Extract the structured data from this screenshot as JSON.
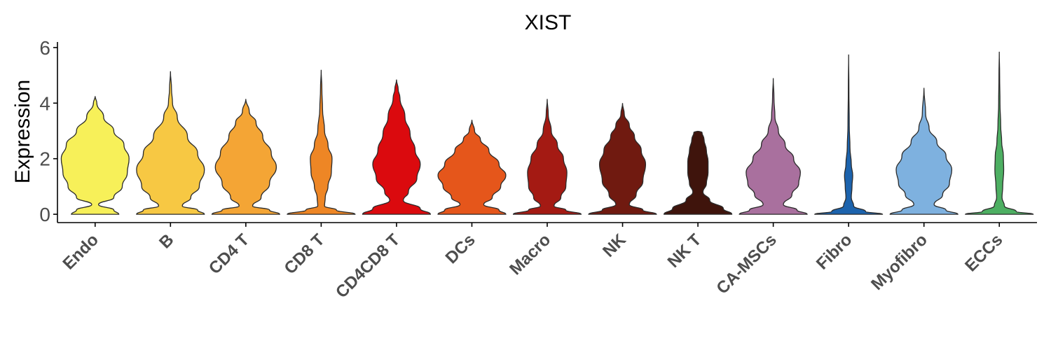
{
  "chart_data": {
    "type": "violin",
    "title": "XIST",
    "xlabel": "",
    "ylabel": "Expression",
    "ylim": [
      -0.3,
      6.2
    ],
    "yticks": [
      "0",
      "2",
      "4",
      "6"
    ],
    "grid": false,
    "legend": "none",
    "categories": [
      {
        "name": "Endo",
        "color": "#f7f059",
        "max": 4.25,
        "density": [
          [
            0,
            0.7
          ],
          [
            0.15,
            0.55
          ],
          [
            0.35,
            0.1
          ],
          [
            0.6,
            0.55
          ],
          [
            1.0,
            0.8
          ],
          [
            1.5,
            0.95
          ],
          [
            2.0,
            1.0
          ],
          [
            2.5,
            0.85
          ],
          [
            3.0,
            0.55
          ],
          [
            3.5,
            0.25
          ],
          [
            4.0,
            0.05
          ],
          [
            4.25,
            0
          ]
        ]
      },
      {
        "name": "B",
        "color": "#f7c843",
        "max": 5.15,
        "density": [
          [
            0,
            1.0
          ],
          [
            0.15,
            0.8
          ],
          [
            0.3,
            0.35
          ],
          [
            0.6,
            0.6
          ],
          [
            1.0,
            0.85
          ],
          [
            1.6,
            1.0
          ],
          [
            2.2,
            0.8
          ],
          [
            2.8,
            0.5
          ],
          [
            3.5,
            0.2
          ],
          [
            4.0,
            0.06
          ],
          [
            4.5,
            0.03
          ],
          [
            5.15,
            0
          ]
        ]
      },
      {
        "name": "CD4 T",
        "color": "#f4a535",
        "max": 4.15,
        "density": [
          [
            0,
            1.0
          ],
          [
            0.15,
            0.7
          ],
          [
            0.3,
            0.2
          ],
          [
            0.6,
            0.45
          ],
          [
            1.1,
            0.7
          ],
          [
            1.7,
            0.9
          ],
          [
            2.2,
            0.75
          ],
          [
            2.8,
            0.5
          ],
          [
            3.3,
            0.3
          ],
          [
            3.7,
            0.1
          ],
          [
            4.15,
            0
          ]
        ]
      },
      {
        "name": "CD8 T",
        "color": "#ee8625",
        "max": 5.2,
        "density": [
          [
            0,
            1.0
          ],
          [
            0.15,
            0.45
          ],
          [
            0.3,
            0.1
          ],
          [
            0.6,
            0.12
          ],
          [
            1.0,
            0.2
          ],
          [
            1.5,
            0.3
          ],
          [
            2.0,
            0.32
          ],
          [
            2.5,
            0.2
          ],
          [
            3.0,
            0.1
          ],
          [
            3.8,
            0.04
          ],
          [
            4.5,
            0.02
          ],
          [
            5.2,
            0
          ]
        ]
      },
      {
        "name": "CD4CD8 T",
        "color": "#db0a0e",
        "max": 4.85,
        "density": [
          [
            0,
            1.0
          ],
          [
            0.2,
            0.7
          ],
          [
            0.5,
            0.2
          ],
          [
            0.8,
            0.35
          ],
          [
            1.3,
            0.6
          ],
          [
            1.8,
            0.7
          ],
          [
            2.3,
            0.55
          ],
          [
            2.9,
            0.4
          ],
          [
            3.5,
            0.25
          ],
          [
            4.2,
            0.1
          ],
          [
            4.5,
            0.05
          ],
          [
            4.85,
            0
          ]
        ]
      },
      {
        "name": "DCs",
        "color": "#e5561b",
        "max": 3.4,
        "density": [
          [
            0,
            1.0
          ],
          [
            0.15,
            0.8
          ],
          [
            0.35,
            0.35
          ],
          [
            0.6,
            0.6
          ],
          [
            1.0,
            0.85
          ],
          [
            1.4,
            1.0
          ],
          [
            1.8,
            0.8
          ],
          [
            2.3,
            0.5
          ],
          [
            2.7,
            0.25
          ],
          [
            3.0,
            0.08
          ],
          [
            3.4,
            0
          ]
        ]
      },
      {
        "name": "Macro",
        "color": "#a41a13",
        "max": 4.15,
        "density": [
          [
            0,
            1.0
          ],
          [
            0.15,
            0.55
          ],
          [
            0.3,
            0.2
          ],
          [
            0.6,
            0.4
          ],
          [
            1.0,
            0.55
          ],
          [
            1.5,
            0.58
          ],
          [
            2.0,
            0.48
          ],
          [
            2.5,
            0.3
          ],
          [
            3.0,
            0.12
          ],
          [
            3.6,
            0.03
          ],
          [
            4.15,
            0
          ]
        ]
      },
      {
        "name": "NK",
        "color": "#701a10",
        "max": 4.0,
        "density": [
          [
            0,
            1.0
          ],
          [
            0.15,
            0.6
          ],
          [
            0.35,
            0.2
          ],
          [
            0.7,
            0.4
          ],
          [
            1.2,
            0.6
          ],
          [
            1.8,
            0.68
          ],
          [
            2.3,
            0.55
          ],
          [
            2.8,
            0.35
          ],
          [
            3.2,
            0.2
          ],
          [
            3.6,
            0.05
          ],
          [
            4.0,
            0
          ]
        ]
      },
      {
        "name": "NK T",
        "color": "#3f140c",
        "max": 3.0,
        "density": [
          [
            0,
            1.0
          ],
          [
            0.2,
            0.75
          ],
          [
            0.5,
            0.35
          ],
          [
            0.8,
            0.15
          ],
          [
            1.1,
            0.25
          ],
          [
            1.5,
            0.3
          ],
          [
            1.9,
            0.3
          ],
          [
            2.3,
            0.25
          ],
          [
            2.7,
            0.18
          ],
          [
            2.95,
            0.12
          ],
          [
            3.0,
            0
          ]
        ]
      },
      {
        "name": "CA-MSCs",
        "color": "#a9709e",
        "max": 4.9,
        "density": [
          [
            0,
            1.0
          ],
          [
            0.15,
            0.7
          ],
          [
            0.35,
            0.3
          ],
          [
            0.7,
            0.55
          ],
          [
            1.1,
            0.75
          ],
          [
            1.5,
            0.8
          ],
          [
            2.0,
            0.6
          ],
          [
            2.5,
            0.35
          ],
          [
            3.0,
            0.15
          ],
          [
            3.5,
            0.05
          ],
          [
            4.2,
            0.02
          ],
          [
            4.9,
            0
          ]
        ]
      },
      {
        "name": "Fibro",
        "color": "#1c63ad",
        "max": 5.75,
        "density": [
          [
            0,
            1.0
          ],
          [
            0.1,
            0.5
          ],
          [
            0.3,
            0.15
          ],
          [
            0.6,
            0.08
          ],
          [
            1.0,
            0.1
          ],
          [
            1.4,
            0.12
          ],
          [
            1.8,
            0.08
          ],
          [
            2.4,
            0.04
          ],
          [
            3.2,
            0.02
          ],
          [
            4.5,
            0.01
          ],
          [
            5.75,
            0
          ]
        ]
      },
      {
        "name": "Myofibro",
        "color": "#7eb1df",
        "max": 4.55,
        "density": [
          [
            0,
            1.0
          ],
          [
            0.15,
            0.65
          ],
          [
            0.35,
            0.3
          ],
          [
            0.7,
            0.55
          ],
          [
            1.1,
            0.75
          ],
          [
            1.6,
            0.82
          ],
          [
            2.1,
            0.65
          ],
          [
            2.6,
            0.38
          ],
          [
            3.1,
            0.15
          ],
          [
            3.6,
            0.05
          ],
          [
            4.55,
            0
          ]
        ]
      },
      {
        "name": "ECCs",
        "color": "#4daf62",
        "max": 5.85,
        "density": [
          [
            0,
            1.0
          ],
          [
            0.1,
            0.5
          ],
          [
            0.3,
            0.15
          ],
          [
            0.6,
            0.08
          ],
          [
            1.0,
            0.1
          ],
          [
            1.6,
            0.13
          ],
          [
            2.1,
            0.12
          ],
          [
            2.6,
            0.07
          ],
          [
            3.2,
            0.04
          ],
          [
            4.0,
            0.02
          ],
          [
            5.0,
            0.01
          ],
          [
            5.85,
            0
          ]
        ]
      }
    ]
  }
}
